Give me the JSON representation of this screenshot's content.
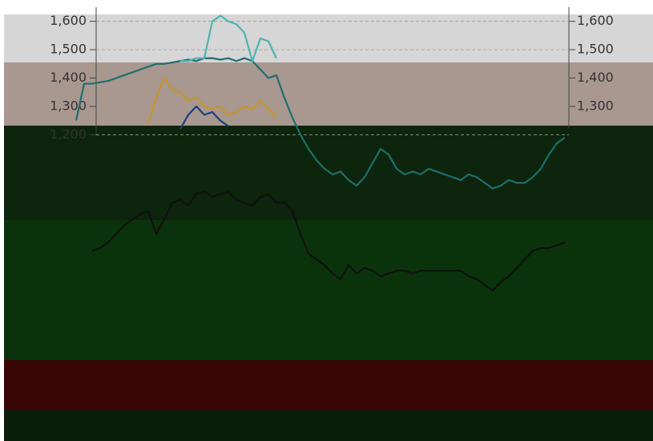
{
  "chart_data": {
    "type": "line",
    "ylim": [
      150,
      1650
    ],
    "yticks": [
      {
        "value": 1200,
        "label": "1,200"
      },
      {
        "value": 1300,
        "label": "1,300"
      },
      {
        "value": 1400,
        "label": "1,400"
      },
      {
        "value": 1500,
        "label": "1,500"
      },
      {
        "value": 1600,
        "label": "1,600"
      }
    ],
    "y2lim": [
      150,
      1650
    ],
    "y2ticks": [
      {
        "value": 1300,
        "label": "1,300"
      },
      {
        "value": 1400,
        "label": "1,400"
      },
      {
        "value": 1500,
        "label": "1,500"
      },
      {
        "value": 1600,
        "label": "1,600"
      }
    ],
    "grid": true,
    "series": [
      {
        "color": "#1f6e6e",
        "values": [
          1250,
          1380,
          1380,
          1385,
          1390,
          1400,
          1410,
          1420,
          1430,
          1440,
          1450,
          1450,
          1455,
          1460,
          1465,
          1460,
          1470,
          1470,
          1465,
          1470,
          1460,
          1470,
          1460,
          1430,
          1400,
          1410,
          1330,
          1260,
          1200,
          1150,
          1110,
          1080,
          1060,
          1070,
          1040,
          1020,
          1050,
          1100,
          1150,
          1130,
          1080,
          1060,
          1070,
          1060,
          1080,
          1070,
          1060,
          1050,
          1040,
          1060,
          1050,
          1030,
          1010,
          1020,
          1040,
          1030,
          1030,
          1050,
          1080,
          1130,
          1170,
          1190
        ]
      },
      {
        "color": "#4fb3b0",
        "values": [
          null,
          null,
          null,
          null,
          null,
          null,
          null,
          null,
          null,
          null,
          null,
          null,
          null,
          1460,
          1460,
          1470,
          1470,
          1600,
          1620,
          1600,
          1590,
          1560,
          1460,
          1540,
          1530,
          1470,
          null,
          null,
          null,
          null,
          null,
          null,
          null,
          null,
          null,
          null,
          null,
          null,
          null,
          null,
          null,
          null,
          null,
          null,
          null,
          null,
          null,
          null,
          null,
          null,
          null,
          null,
          null,
          null,
          null,
          null,
          null,
          null,
          null,
          null,
          null,
          null
        ]
      },
      {
        "color": "#c8952a",
        "values": [
          null,
          null,
          null,
          null,
          null,
          null,
          null,
          null,
          null,
          1240,
          1330,
          1400,
          1360,
          1350,
          1320,
          1330,
          1300,
          1290,
          1300,
          1270,
          1280,
          1300,
          1290,
          1320,
          1290,
          1260,
          null,
          null,
          null,
          null,
          null,
          null,
          null,
          null,
          null,
          null,
          null,
          null,
          null,
          null,
          null,
          null,
          null,
          null,
          null,
          null,
          null,
          null,
          null,
          null,
          null,
          null,
          null,
          null,
          null,
          null,
          null,
          null,
          null,
          null,
          null,
          null
        ]
      },
      {
        "color": "#1d3f7a",
        "values": [
          null,
          null,
          null,
          null,
          null,
          null,
          null,
          null,
          null,
          null,
          null,
          null,
          null,
          1220,
          1270,
          1300,
          1270,
          1280,
          1250,
          1230,
          null,
          null,
          null,
          null,
          null,
          null,
          null,
          null,
          null,
          null,
          null,
          null,
          null,
          null,
          null,
          null,
          null,
          null,
          null,
          null,
          null,
          null,
          null,
          null,
          null,
          null,
          null,
          null,
          null,
          null,
          null,
          null,
          null,
          null,
          null,
          null,
          null,
          null,
          null,
          null,
          null,
          null
        ]
      },
      {
        "color": "#111111",
        "values": [
          null,
          null,
          790,
          800,
          820,
          850,
          880,
          900,
          920,
          930,
          850,
          900,
          960,
          970,
          950,
          990,
          1000,
          980,
          990,
          1000,
          970,
          960,
          950,
          980,
          990,
          960,
          960,
          930,
          850,
          780,
          760,
          740,
          710,
          690,
          740,
          710,
          730,
          720,
          700,
          710,
          720,
          720,
          710,
          720,
          720,
          720,
          720,
          720,
          720,
          700,
          690,
          670,
          650,
          680,
          700,
          730,
          760,
          790,
          800,
          800,
          810,
          820
        ]
      }
    ]
  }
}
